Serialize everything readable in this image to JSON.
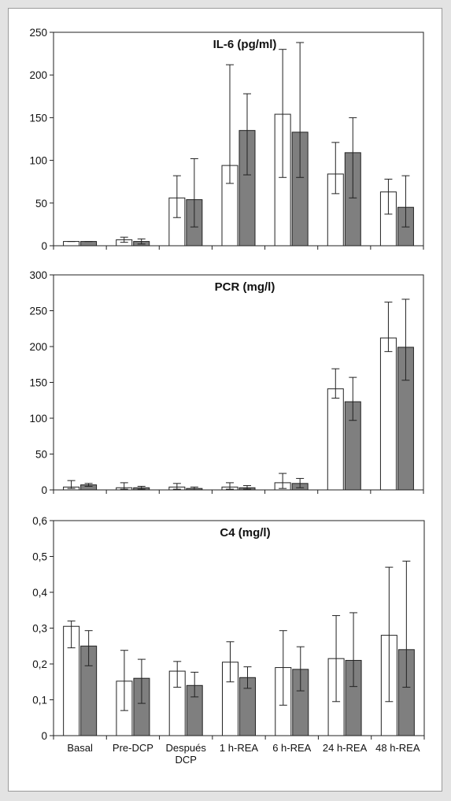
{
  "chart_data": [
    {
      "type": "bar",
      "title": "IL-6 (pg/ml)",
      "categories": [
        "",
        "",
        "",
        "",
        "",
        "",
        ""
      ],
      "ylim": [
        0,
        250
      ],
      "yticks": [
        "0",
        "50",
        "100",
        "150",
        "200",
        "250"
      ],
      "colors": [
        "#ffffff",
        "#7f7f7f"
      ],
      "grid": false,
      "series": [
        {
          "values": [
            5,
            7,
            56,
            94,
            154,
            84,
            63
          ],
          "err_low": [
            5,
            4,
            33,
            73,
            80,
            61,
            37
          ],
          "err_high": [
            5,
            10,
            82,
            212,
            230,
            121,
            78
          ]
        },
        {
          "values": [
            5,
            5,
            54,
            135,
            133,
            109,
            45
          ],
          "err_low": [
            5,
            2,
            22,
            83,
            80,
            56,
            22
          ],
          "err_high": [
            5,
            8,
            102,
            178,
            238,
            150,
            82
          ]
        }
      ]
    },
    {
      "type": "bar",
      "title": "PCR (mg/l)",
      "categories": [
        "",
        "",
        "",
        "",
        "",
        "",
        ""
      ],
      "ylim": [
        0,
        300
      ],
      "yticks": [
        "0",
        "50",
        "100",
        "150",
        "200",
        "250",
        "300"
      ],
      "colors": [
        "#ffffff",
        "#7f7f7f"
      ],
      "grid": false,
      "series": [
        {
          "values": [
            4,
            3,
            4,
            4,
            10,
            141,
            212
          ],
          "err_low": [
            2,
            1,
            1,
            1,
            2,
            128,
            193
          ],
          "err_high": [
            13,
            10,
            9,
            10,
            23,
            169,
            262
          ]
        },
        {
          "values": [
            7,
            3,
            2,
            3,
            9,
            123,
            199
          ],
          "err_low": [
            5,
            1,
            0,
            1,
            3,
            97,
            153
          ],
          "err_high": [
            9,
            5,
            4,
            6,
            16,
            157,
            266
          ]
        }
      ]
    },
    {
      "type": "bar",
      "title": "C4 (mg/l)",
      "categories": [
        "Basal",
        "Pre-DCP",
        "Después DCP",
        "1 h-REA",
        "6 h-REA",
        "24 h-REA",
        "48 h-REA"
      ],
      "ylim": [
        0,
        0.6
      ],
      "yticks": [
        "0",
        "0,1",
        "0,2",
        "0,3",
        "0,4",
        "0,5",
        "0,6"
      ],
      "colors": [
        "#ffffff",
        "#7f7f7f"
      ],
      "grid": false,
      "series": [
        {
          "values": [
            0.305,
            0.152,
            0.18,
            0.205,
            0.19,
            0.215,
            0.28
          ],
          "err_low": [
            0.245,
            0.07,
            0.135,
            0.15,
            0.085,
            0.095,
            0.095
          ],
          "err_high": [
            0.32,
            0.238,
            0.207,
            0.262,
            0.293,
            0.335,
            0.47
          ]
        },
        {
          "values": [
            0.25,
            0.16,
            0.14,
            0.162,
            0.185,
            0.21,
            0.24
          ],
          "err_low": [
            0.195,
            0.09,
            0.108,
            0.132,
            0.125,
            0.137,
            0.135
          ],
          "err_high": [
            0.293,
            0.213,
            0.177,
            0.192,
            0.248,
            0.343,
            0.487
          ]
        }
      ]
    }
  ]
}
